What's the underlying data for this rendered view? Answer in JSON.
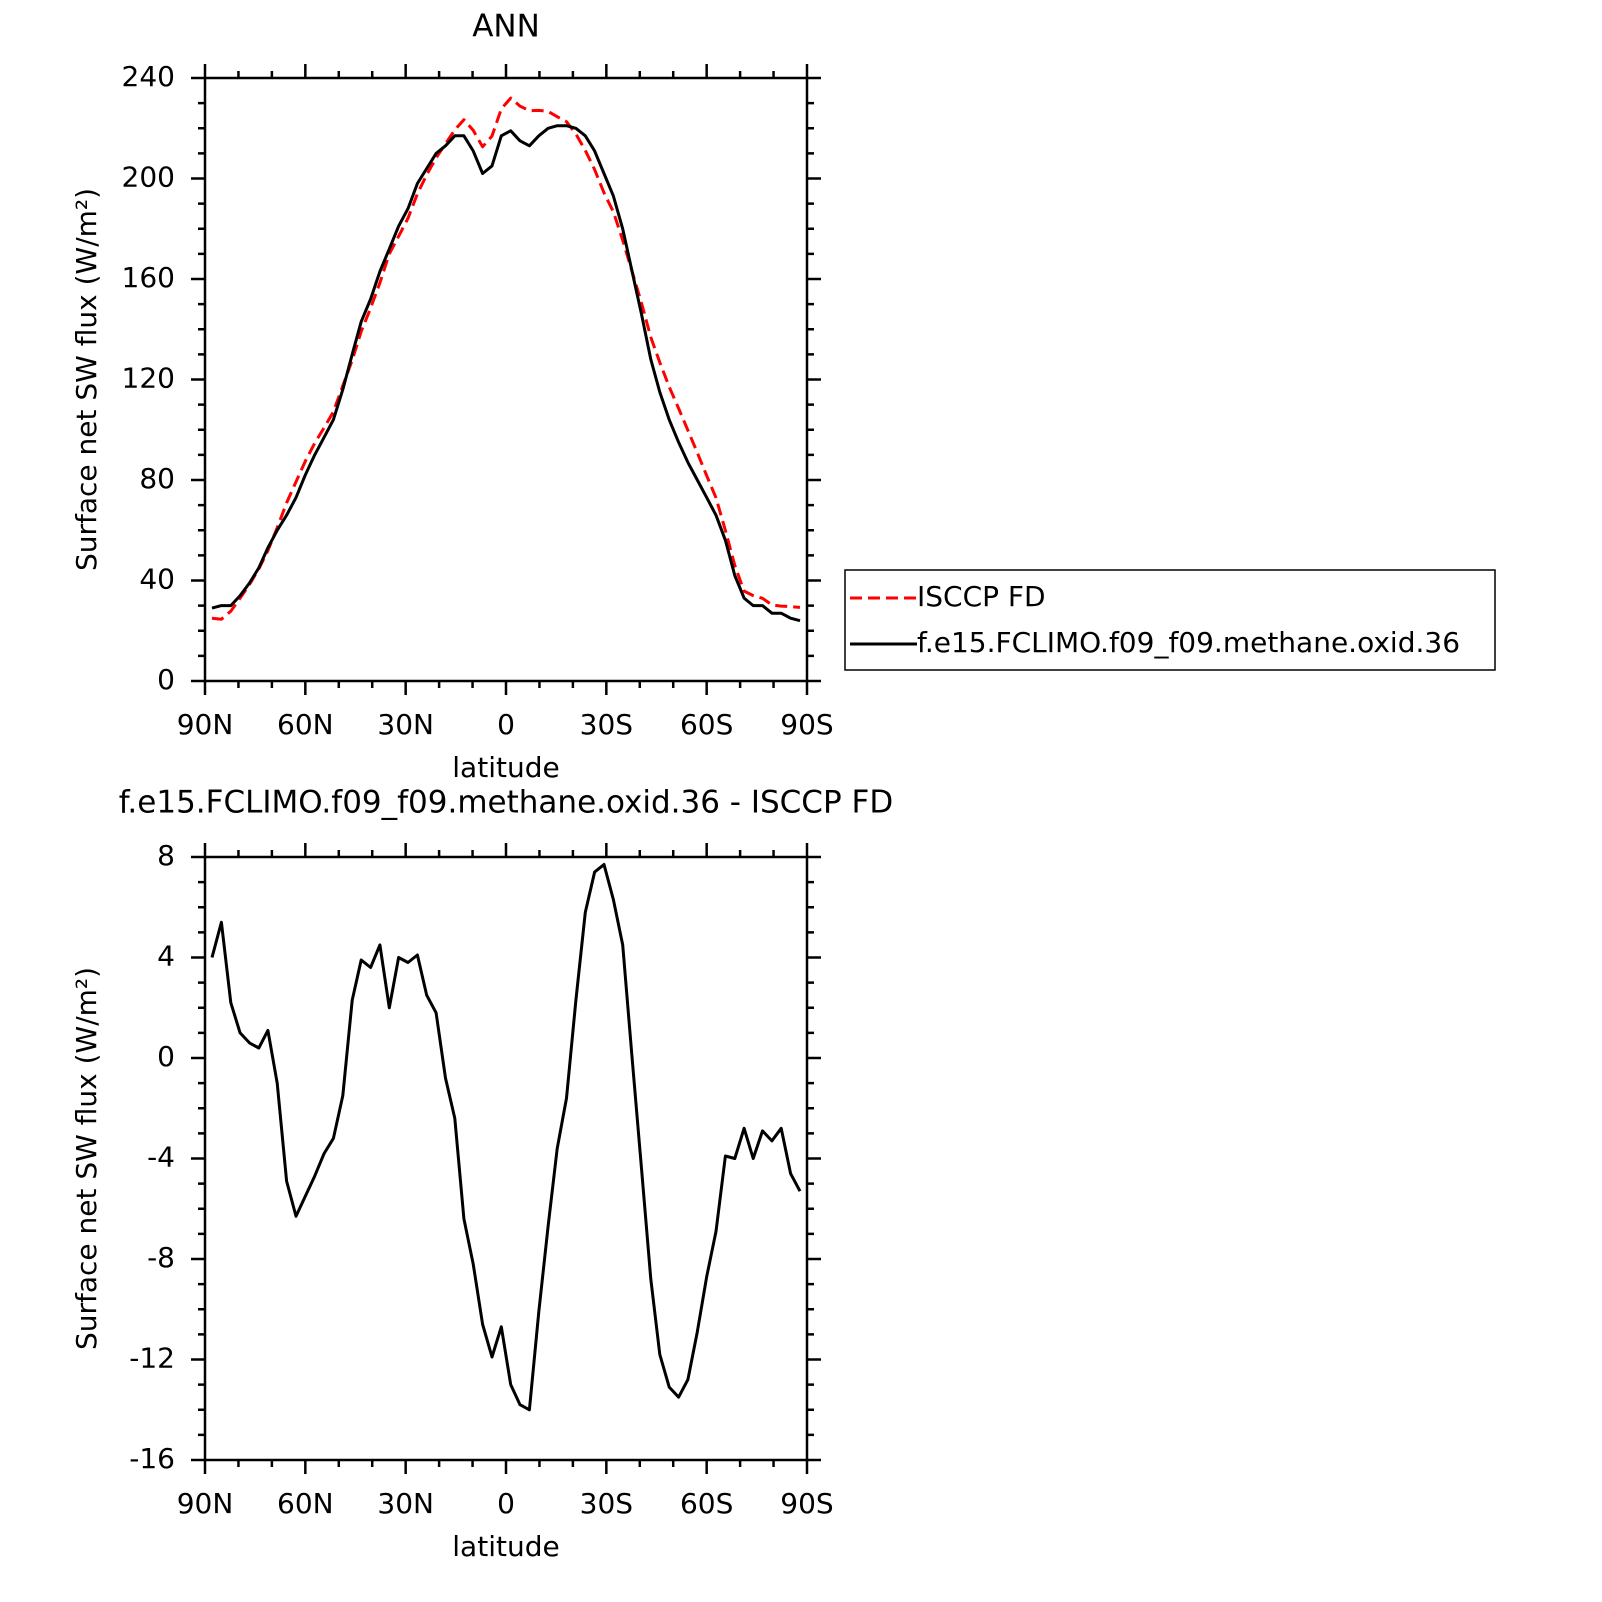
{
  "chart_data": [
    {
      "type": "line",
      "title": "ANN",
      "x_label": "latitude",
      "y_label": "Surface net SW flux (W/m²)",
      "x": [
        87.9,
        85.1,
        82.3,
        79.5,
        76.7,
        73.9,
        71.2,
        68.4,
        65.6,
        62.8,
        60.0,
        57.2,
        54.4,
        51.6,
        48.8,
        46.0,
        43.3,
        40.5,
        37.7,
        34.9,
        32.1,
        29.3,
        26.5,
        23.7,
        20.9,
        18.1,
        15.3,
        12.6,
        9.8,
        7.0,
        4.2,
        1.4,
        -1.4,
        -4.2,
        -7.0,
        -9.8,
        -12.6,
        -15.3,
        -18.1,
        -20.9,
        -23.7,
        -26.5,
        -29.3,
        -32.1,
        -34.9,
        -37.7,
        -40.5,
        -43.3,
        -46.0,
        -48.8,
        -51.6,
        -54.4,
        -57.2,
        -60.0,
        -62.8,
        -65.6,
        -68.4,
        -71.2,
        -73.9,
        -76.7,
        -79.5,
        -82.3,
        -85.1,
        -87.9
      ],
      "series": [
        {
          "name": "ISCCP FD",
          "color": "#ff0000",
          "line_style": "dashed",
          "values": [
            25.0,
            24.6,
            27.8,
            33.0,
            38.4,
            44.6,
            51.9,
            61.0,
            70.9,
            79.3,
            87.5,
            94.7,
            100.8,
            107.2,
            117.5,
            127.7,
            139.1,
            148.4,
            158.5,
            170.0,
            177.0,
            184.2,
            193.9,
            201.5,
            208.2,
            213.8,
            219.4,
            223.4,
            219.2,
            212.6,
            216.9,
            227.7,
            232.0,
            228.8,
            227.0,
            227.1,
            226.7,
            224.6,
            222.6,
            217.7,
            211.2,
            203.6,
            194.3,
            186.7,
            175.5,
            163.0,
            150.4,
            136.8,
            126.8,
            117.1,
            108.5,
            99.8,
            90.9,
            81.7,
            72.9,
            59.9,
            46.0,
            35.8,
            34.0,
            32.9,
            30.3,
            29.8,
            29.6,
            29.3
          ]
        },
        {
          "name": "f.e15.FCLIMO.f09_f09.methane.oxid.36",
          "color": "#000000",
          "line_style": "solid",
          "values": [
            29,
            30,
            30,
            34,
            39,
            45,
            53,
            60,
            66,
            73,
            82,
            90,
            97,
            104,
            116,
            130,
            143,
            152,
            163,
            172,
            181,
            188,
            198,
            204,
            210,
            213,
            217,
            217,
            211,
            202,
            205,
            217,
            219,
            215,
            213,
            217,
            220,
            221,
            221,
            220,
            217,
            211,
            202,
            193,
            180,
            163,
            146,
            128,
            115,
            104,
            95,
            87,
            80,
            73,
            66,
            56,
            42,
            33,
            30,
            30,
            27,
            27,
            25,
            24
          ]
        }
      ],
      "xlim": [
        90,
        -90
      ],
      "xticks": [
        {
          "value": 90,
          "label": "90N"
        },
        {
          "value": 60,
          "label": "60N"
        },
        {
          "value": 30,
          "label": "30N"
        },
        0,
        {
          "value": -30,
          "label": "30S"
        },
        {
          "value": -60,
          "label": "60S"
        },
        {
          "value": -90,
          "label": "90S"
        }
      ],
      "ylim": [
        0,
        240
      ],
      "yticks": [
        0,
        40,
        80,
        120,
        160,
        200,
        240
      ],
      "legend": "right"
    },
    {
      "type": "line",
      "title": "f.e15.FCLIMO.f09_f09.methane.oxid.36 - ISCCP FD",
      "x_label": "latitude",
      "y_label": "Surface net SW flux (W/m²)",
      "x": [
        87.9,
        85.1,
        82.3,
        79.5,
        76.7,
        73.9,
        71.2,
        68.4,
        65.6,
        62.8,
        60.0,
        57.2,
        54.4,
        51.6,
        48.8,
        46.0,
        43.3,
        40.5,
        37.7,
        34.9,
        32.1,
        29.3,
        26.5,
        23.7,
        20.9,
        18.1,
        15.3,
        12.6,
        9.8,
        7.0,
        4.2,
        1.4,
        -1.4,
        -4.2,
        -7.0,
        -9.8,
        -12.6,
        -15.3,
        -18.1,
        -20.9,
        -23.7,
        -26.5,
        -29.3,
        -32.1,
        -34.9,
        -37.7,
        -40.5,
        -43.3,
        -46.0,
        -48.8,
        -51.6,
        -54.4,
        -57.2,
        -60.0,
        -62.8,
        -65.6,
        -68.4,
        -71.2,
        -73.9,
        -76.7,
        -79.5,
        -82.3,
        -85.1,
        -87.9
      ],
      "color": "#000000",
      "values": [
        4.0,
        5.4,
        2.2,
        1.0,
        0.6,
        0.4,
        1.1,
        -1.0,
        -4.9,
        -6.3,
        -5.5,
        -4.7,
        -3.8,
        -3.2,
        -1.5,
        2.3,
        3.9,
        3.6,
        4.5,
        2.0,
        4.0,
        3.8,
        4.1,
        2.5,
        1.8,
        -0.8,
        -2.4,
        -6.4,
        -8.2,
        -10.6,
        -11.9,
        -10.7,
        -13.0,
        -13.8,
        -14.0,
        -10.1,
        -6.7,
        -3.6,
        -1.6,
        2.3,
        5.8,
        7.4,
        7.7,
        6.3,
        4.5,
        0.0,
        -4.4,
        -8.8,
        -11.8,
        -13.1,
        -13.5,
        -12.8,
        -10.9,
        -8.7,
        -6.9,
        -3.9,
        -4.0,
        -2.8,
        -4.0,
        -2.9,
        -3.3,
        -2.8,
        -4.6,
        -5.3
      ],
      "xlim": [
        90,
        -90
      ],
      "xticks": [
        {
          "value": 90,
          "label": "90N"
        },
        {
          "value": 60,
          "label": "60N"
        },
        {
          "value": 30,
          "label": "30N"
        },
        0,
        {
          "value": -30,
          "label": "30S"
        },
        {
          "value": -60,
          "label": "60S"
        },
        {
          "value": -90,
          "label": "90S"
        }
      ],
      "ylim": [
        -16,
        8
      ],
      "yticks": [
        -16,
        -12,
        -8,
        -4,
        0,
        4,
        8
      ]
    }
  ]
}
